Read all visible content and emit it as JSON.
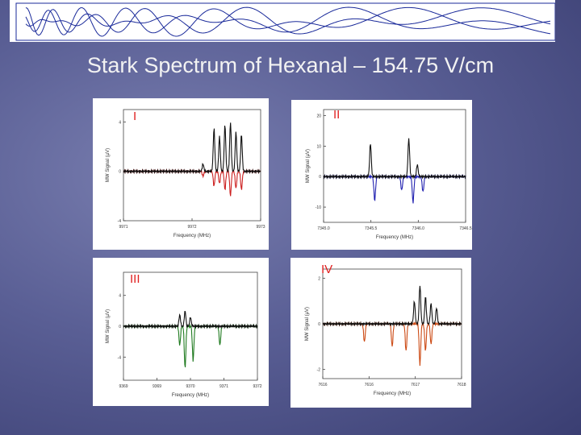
{
  "slide": {
    "title": "Stark Spectrum of Hexanal – 154.75 V/cm"
  },
  "chart_data": [
    {
      "type": "line",
      "panel_label": "I",
      "xlabel": "Frequency (MHz)",
      "ylabel": "MW Signal (µV)",
      "x_ticks": [
        "9971",
        "9972",
        "9973"
      ],
      "y_ticks": [
        "4",
        "0",
        "-4"
      ],
      "ylim": [
        -4,
        5
      ],
      "colors": {
        "upper": "#111111",
        "lower": "#cc2020"
      },
      "upper_peaks": [
        [
          0.58,
          0.6
        ],
        [
          0.66,
          3.5
        ],
        [
          0.7,
          2.8
        ],
        [
          0.74,
          3.8
        ],
        [
          0.78,
          4.0
        ],
        [
          0.82,
          3.2
        ],
        [
          0.86,
          3.0
        ]
      ],
      "lower_peaks": [
        [
          0.58,
          -0.4
        ],
        [
          0.66,
          -1.2
        ],
        [
          0.7,
          -1.0
        ],
        [
          0.74,
          -1.5
        ],
        [
          0.78,
          -2.0
        ],
        [
          0.82,
          -1.4
        ],
        [
          0.86,
          -1.5
        ]
      ]
    },
    {
      "type": "line",
      "panel_label": "II",
      "xlabel": "Frequency (MHz)",
      "ylabel": "MW Signal (µV)",
      "x_ticks": [
        "7345.0",
        "7345.5",
        "7346.0",
        "7346.5"
      ],
      "y_ticks": [
        "20",
        "10",
        "0",
        "-10"
      ],
      "ylim": [
        -15,
        22
      ],
      "colors": {
        "upper": "#111111",
        "lower": "#2020b0"
      },
      "upper_peaks": [
        [
          0.33,
          11.0
        ],
        [
          0.6,
          12.5
        ],
        [
          0.66,
          4.0
        ]
      ],
      "lower_peaks": [
        [
          0.36,
          -8.0
        ],
        [
          0.55,
          -4.5
        ],
        [
          0.63,
          -8.5
        ],
        [
          0.7,
          -5.0
        ]
      ]
    },
    {
      "type": "line",
      "panel_label": "III",
      "xlabel": "Frequency (MHz)",
      "ylabel": "MW Signal (µV)",
      "x_ticks": [
        "9369",
        "9369",
        "9370",
        "9371",
        "9372"
      ],
      "y_ticks": [
        "4",
        "0",
        "-4"
      ],
      "ylim": [
        -7,
        7
      ],
      "colors": {
        "upper": "#111111",
        "lower": "#1f7a1f"
      },
      "upper_peaks": [
        [
          0.42,
          1.5
        ],
        [
          0.46,
          2.0
        ],
        [
          0.5,
          1.2
        ]
      ],
      "lower_peaks": [
        [
          0.42,
          -2.5
        ],
        [
          0.46,
          -5.5
        ],
        [
          0.52,
          -4.5
        ],
        [
          0.72,
          -2.5
        ]
      ]
    },
    {
      "type": "line",
      "panel_label": "IV",
      "xlabel": "Frequency (MHz)",
      "ylabel": "MW Signal (µV)",
      "x_ticks": [
        "7616",
        "7616",
        "7617",
        "7618"
      ],
      "y_ticks": [
        "2",
        "0",
        "-2"
      ],
      "ylim": [
        -2.4,
        2.4
      ],
      "colors": {
        "upper": "#111111",
        "lower": "#cc4a14"
      },
      "upper_peaks": [
        [
          0.66,
          1.0
        ],
        [
          0.7,
          1.7
        ],
        [
          0.74,
          1.2
        ],
        [
          0.78,
          0.9
        ],
        [
          0.82,
          0.7
        ]
      ],
      "lower_peaks": [
        [
          0.3,
          -0.8
        ],
        [
          0.5,
          -1.0
        ],
        [
          0.6,
          -1.2
        ],
        [
          0.7,
          -1.8
        ],
        [
          0.74,
          -1.2
        ],
        [
          0.78,
          -0.9
        ]
      ]
    }
  ]
}
